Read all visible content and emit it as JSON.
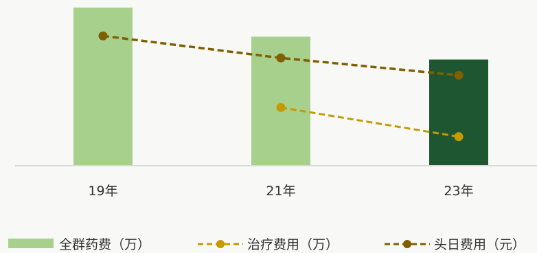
{
  "chart_data": {
    "type": "bar",
    "categories": [
      "19年",
      "21年",
      "23年"
    ],
    "ylim": [
      0,
      100
    ],
    "grid": false,
    "legend_position": "bottom",
    "series": [
      {
        "name": "全群药费（万）",
        "kind": "bar",
        "values": [
          100,
          81.5,
          67
        ],
        "colors": [
          "#a8d08d",
          "#a8d08d",
          "#1e5631"
        ]
      },
      {
        "name": "治疗费用（万）",
        "kind": "line",
        "style": "dashed",
        "color": "#c49a00",
        "values": [
          null,
          36.5,
          18
        ]
      },
      {
        "name": "头日费用（元）",
        "kind": "line",
        "style": "dashed",
        "color": "#7f5f00",
        "values": [
          82,
          68,
          57
        ]
      }
    ]
  }
}
